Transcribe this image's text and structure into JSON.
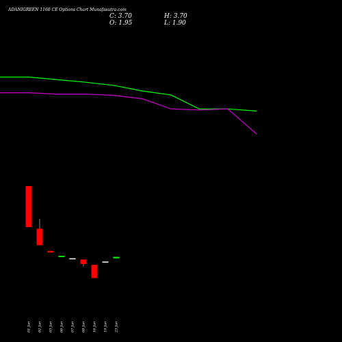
{
  "header": {
    "title": "ADANIGREEN 1160 CE Options Chart Munafasutra.com",
    "close": "C: 3.70",
    "open": "O: 1.95",
    "high": "H: 3.70",
    "low": "L: 1.90"
  },
  "chart_data": {
    "type": "candlestick",
    "categories": [
      "01 Jan",
      "02 Jan",
      "03 Jan",
      "06 Jan",
      "07 Jan",
      "08 Jan",
      "16 Jan",
      "19 Jan",
      "23 Jan"
    ],
    "candles": [
      {
        "open": 90.0,
        "high": 90.0,
        "low": 40.0,
        "close": 40.0
      },
      {
        "open": 38.0,
        "high": 50.0,
        "low": 18.0,
        "close": 18.0
      },
      {
        "open": 11.0,
        "high": 11.0,
        "low": 9.0,
        "close": 9.0
      },
      {
        "open": 3.5,
        "high": 5.0,
        "low": 3.5,
        "close": 5.0
      },
      {
        "open": 2.0,
        "high": 2.0,
        "low": 2.0,
        "close": 2.0
      },
      {
        "open": 0.5,
        "high": 0.5,
        "low": -8.0,
        "close": -5.0
      },
      {
        "open": -6.0,
        "high": -6.0,
        "low": -22.0,
        "close": -22.0
      },
      {
        "open": -2.0,
        "high": -2.0,
        "low": -2.0,
        "close": -2.0
      },
      {
        "open": 1.95,
        "high": 3.7,
        "low": 1.9,
        "close": 3.7
      }
    ],
    "series": [
      {
        "color": "#00ff00",
        "x": [
          0,
          42,
          83,
          125,
          166,
          208,
          250,
          291,
          333,
          375
        ],
        "y": [
          38.7,
          38.7,
          36.8,
          34.9,
          32.6,
          28.5,
          25.6,
          15.4,
          15.4,
          13.8
        ]
      },
      {
        "color": "#cc00cc",
        "x": [
          0,
          42,
          83,
          125,
          166,
          208,
          250,
          291,
          333,
          375
        ],
        "y": [
          27.2,
          27.2,
          26.2,
          26.2,
          25.3,
          22.8,
          15.4,
          14.6,
          15.4,
          -3.0
        ]
      }
    ],
    "colors": {
      "up": "#00ff00",
      "down": "#ff0000",
      "neutral": "#ffffff",
      "background": "#000000"
    },
    "grid": false
  }
}
